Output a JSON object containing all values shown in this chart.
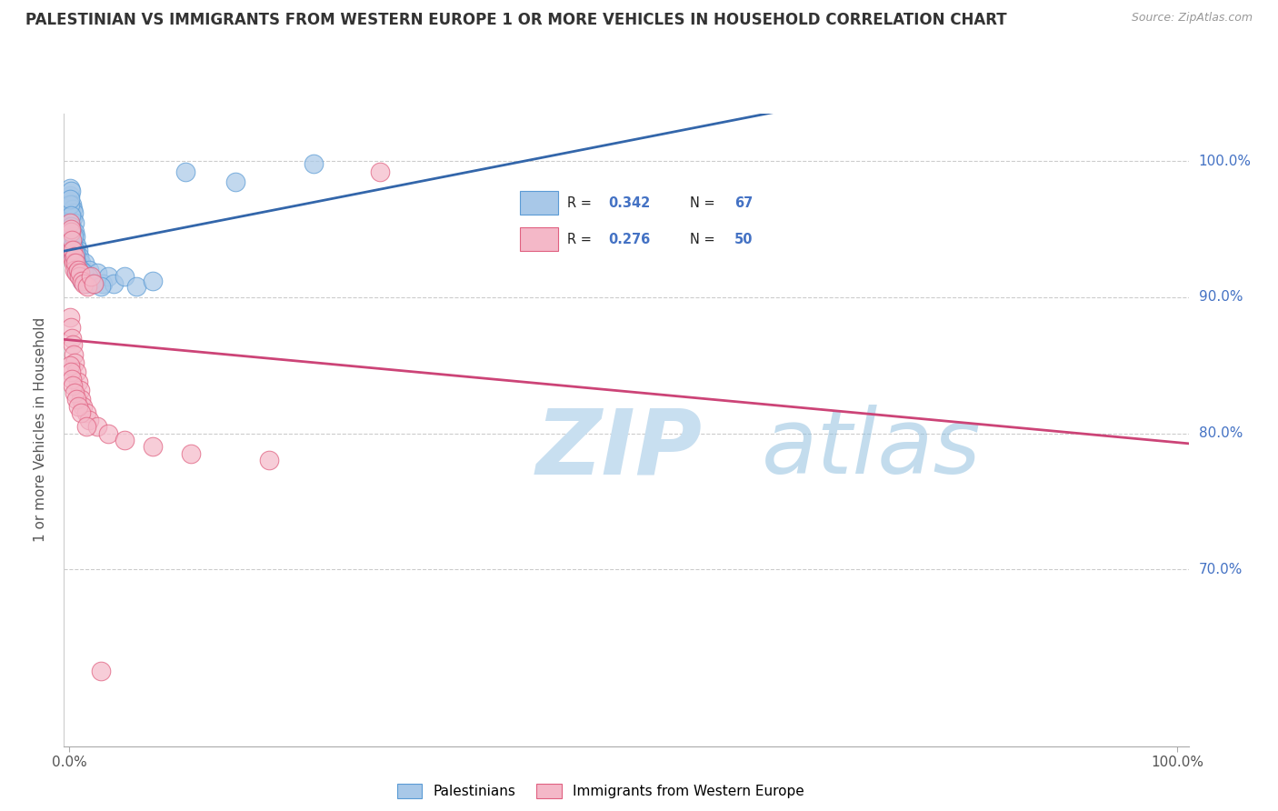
{
  "title": "PALESTINIAN VS IMMIGRANTS FROM WESTERN EUROPE 1 OR MORE VEHICLES IN HOUSEHOLD CORRELATION CHART",
  "source": "Source: ZipAtlas.com",
  "ylabel": "1 or more Vehicles in Household",
  "blue_R": 0.342,
  "blue_N": 67,
  "pink_R": 0.276,
  "pink_N": 50,
  "blue_color": "#a8c8e8",
  "blue_edge_color": "#5b9bd5",
  "pink_color": "#f4b8c8",
  "pink_edge_color": "#e06080",
  "blue_line_color": "#3366aa",
  "pink_line_color": "#cc4477",
  "ytick_color": "#4472C4",
  "xtick_color": "#555555",
  "watermark_zip_color": "#c8dff0",
  "watermark_atlas_color": "#88bbdd",
  "legend_label_blue": "Palestinians",
  "legend_label_pink": "Immigrants from Western Europe",
  "xlim_min": -0.5,
  "xlim_max": 101.0,
  "ylim_min": 57.0,
  "ylim_max": 103.5,
  "blue_x": [
    0.05,
    0.08,
    0.1,
    0.12,
    0.15,
    0.18,
    0.2,
    0.22,
    0.25,
    0.28,
    0.3,
    0.32,
    0.35,
    0.38,
    0.4,
    0.42,
    0.45,
    0.48,
    0.5,
    0.55,
    0.6,
    0.65,
    0.7,
    0.75,
    0.8,
    0.9,
    1.0,
    1.1,
    1.2,
    1.4,
    1.6,
    1.8,
    2.0,
    2.5,
    3.0,
    3.5,
    4.0,
    5.0,
    6.0,
    7.5,
    0.06,
    0.09,
    0.13,
    0.17,
    0.21,
    0.26,
    0.31,
    0.36,
    0.41,
    0.46,
    0.51,
    0.56,
    0.61,
    0.66,
    0.72,
    0.82,
    0.92,
    1.05,
    1.15,
    1.3,
    1.5,
    1.7,
    2.2,
    2.8,
    10.5,
    15.0,
    22.0
  ],
  "blue_y": [
    97.5,
    98.0,
    96.5,
    97.8,
    95.5,
    96.8,
    94.8,
    96.0,
    95.0,
    96.5,
    94.5,
    95.8,
    94.0,
    96.2,
    93.8,
    95.5,
    93.5,
    94.8,
    93.0,
    94.5,
    93.2,
    93.8,
    92.5,
    93.5,
    92.8,
    93.0,
    92.5,
    92.0,
    91.8,
    92.5,
    91.5,
    92.0,
    91.2,
    91.8,
    91.0,
    91.5,
    91.0,
    91.5,
    90.8,
    91.2,
    96.8,
    97.2,
    96.0,
    95.2,
    94.2,
    93.8,
    93.2,
    94.5,
    93.0,
    93.5,
    92.8,
    93.2,
    92.0,
    92.5,
    91.8,
    92.2,
    91.5,
    92.0,
    91.2,
    91.8,
    91.0,
    91.5,
    91.0,
    90.8,
    99.2,
    98.5,
    99.8
  ],
  "pink_x": [
    0.06,
    0.1,
    0.14,
    0.18,
    0.22,
    0.27,
    0.32,
    0.37,
    0.42,
    0.47,
    0.55,
    0.65,
    0.75,
    0.85,
    0.95,
    1.1,
    1.3,
    1.6,
    1.9,
    2.2,
    0.08,
    0.13,
    0.2,
    0.28,
    0.38,
    0.5,
    0.62,
    0.78,
    0.92,
    1.05,
    1.2,
    1.5,
    1.8,
    2.5,
    3.5,
    5.0,
    7.5,
    11.0,
    18.0,
    28.0,
    0.09,
    0.16,
    0.24,
    0.33,
    0.45,
    0.6,
    0.8,
    1.0,
    1.5,
    2.8
  ],
  "pink_y": [
    95.5,
    94.8,
    95.0,
    93.5,
    94.2,
    92.8,
    93.5,
    92.5,
    93.0,
    92.0,
    92.5,
    91.8,
    92.0,
    91.5,
    91.8,
    91.2,
    91.0,
    90.8,
    91.5,
    91.0,
    88.5,
    87.8,
    87.0,
    86.5,
    85.8,
    85.2,
    84.5,
    83.8,
    83.2,
    82.5,
    82.0,
    81.5,
    81.0,
    80.5,
    80.0,
    79.5,
    79.0,
    78.5,
    78.0,
    99.2,
    85.0,
    84.5,
    84.0,
    83.5,
    83.0,
    82.5,
    82.0,
    81.5,
    80.5,
    62.5
  ]
}
